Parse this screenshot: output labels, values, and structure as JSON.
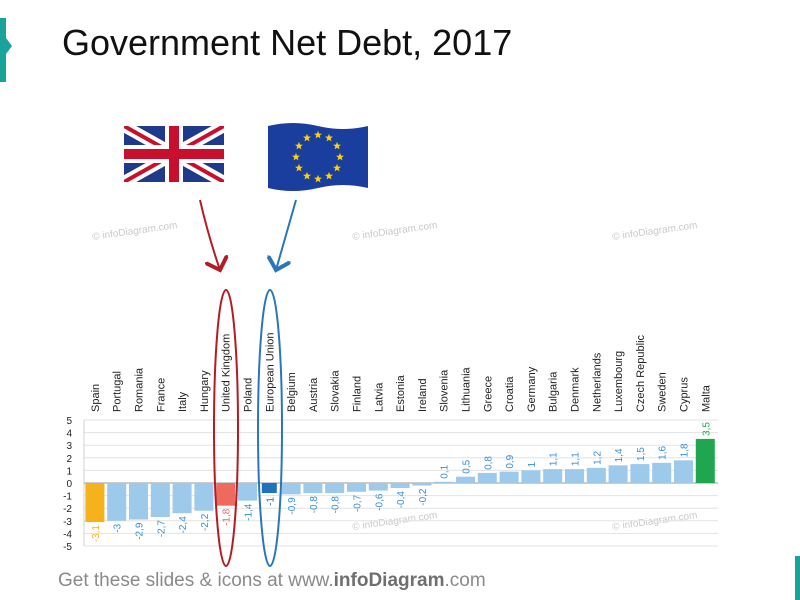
{
  "title": "Government Net Debt, 2017",
  "footer": {
    "prefix": "Get these slides & icons at www.",
    "brand": "infoDiagram",
    "suffix": ".com"
  },
  "watermark": "© infoDiagram.com",
  "flags": {
    "uk": "flag-united-kingdom-icon",
    "eu": "flag-european-union-icon"
  },
  "colors": {
    "bar_default": "#9dc9ea",
    "label_default": "#3a8fd0",
    "spain": "#f6b21b",
    "united_kingdom": "#ef6a5e",
    "european_union": "#1f73bd",
    "malta": "#21a650",
    "uk_ring": "#b21d24",
    "eu_ring": "#2a76bc"
  },
  "chart_data": {
    "type": "bar",
    "title": "Government Net Debt, 2017",
    "xlabel": "",
    "ylabel": "",
    "ylim": [
      -5,
      5
    ],
    "yticks": [
      "-5",
      "-4",
      "-3",
      "-2",
      "-1",
      "0",
      "1",
      "2",
      "3",
      "4",
      "5"
    ],
    "grid": true,
    "categories": [
      "Spain",
      "Portugal",
      "Romania",
      "France",
      "Italy",
      "Hungary",
      "United Kingdom",
      "Poland",
      "European Union",
      "Belgium",
      "Austria",
      "Slovakia",
      "Finland",
      "Latvia",
      "Estonia",
      "Ireland",
      "Slovenia",
      "Lithuania",
      "Greece",
      "Croatia",
      "Germany",
      "Bulgaria",
      "Denmark",
      "Netherlands",
      "Luxembourg",
      "Czech Republic",
      "Sweden",
      "Cyprus",
      "Malta"
    ],
    "values": [
      -3.1,
      -3,
      -2.9,
      -2.7,
      -2.4,
      -2.2,
      -1.8,
      -1.4,
      -1,
      -0.9,
      -0.8,
      -0.8,
      -0.7,
      -0.6,
      -0.4,
      -0.2,
      0.1,
      0.5,
      0.8,
      0.9,
      1,
      1.1,
      1.1,
      1.2,
      1.4,
      1.5,
      1.6,
      1.8,
      3.5
    ],
    "value_labels": [
      "-3,1",
      "-3",
      "-2,9",
      "-2,7",
      "-2,4",
      "-2,2",
      "-1,8",
      "-1,4",
      "-1",
      "-0,9",
      "-0,8",
      "-0,8",
      "-0,7",
      "-0,6",
      "-0,4",
      "-0,2",
      "0,1",
      "0,5",
      "0,8",
      "0,9",
      "1",
      "1,1",
      "1,1",
      "1,2",
      "1,4",
      "1,5",
      "1,6",
      "1,8",
      "3,5"
    ],
    "highlighted": [
      "Spain",
      "United Kingdom",
      "European Union",
      "Malta"
    ]
  }
}
